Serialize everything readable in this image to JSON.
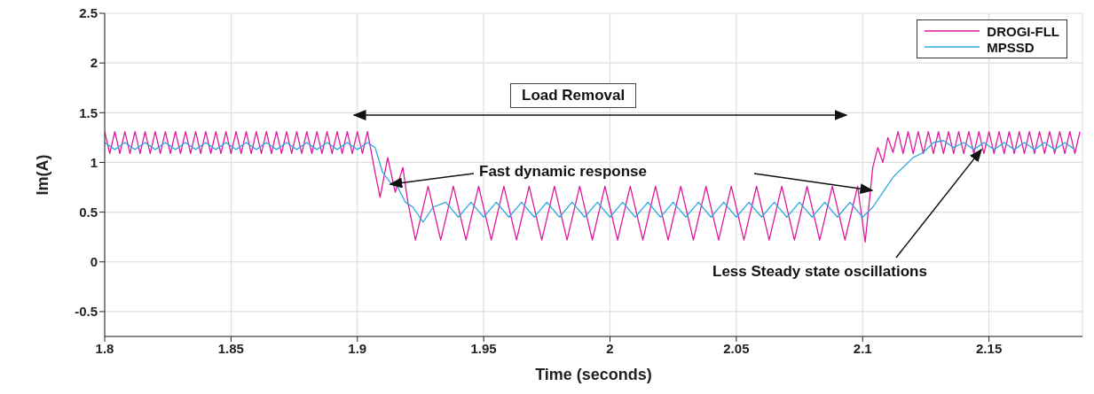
{
  "chart_data": {
    "type": "line",
    "xlabel": "Time (seconds)",
    "ylabel": "Im(A)",
    "xlim": [
      1.8,
      2.187
    ],
    "xticks": [
      1.8,
      1.85,
      1.9,
      1.95,
      2,
      2.05,
      2.1,
      2.15
    ],
    "ylim": [
      -0.75,
      2.5
    ],
    "yticks": [
      -0.5,
      0,
      0.5,
      1,
      1.5,
      2,
      2.5
    ],
    "grid": true,
    "legend": "top right",
    "marker": "none",
    "line_style": "solid",
    "annotations": [
      "Load Removal",
      {
        "text": "Fast dynamic response",
        "x": 1.913,
        "y": 0.78
      },
      {
        "text": "Less Steady state oscillations",
        "x": 2.147,
        "y": 1.13
      }
    ],
    "series": [
      {
        "name": "DROGI-FLL",
        "color": "#e0189c",
        "x": [
          1.8,
          1.802,
          1.804,
          1.806,
          1.808,
          1.81,
          1.812,
          1.814,
          1.816,
          1.818,
          1.82,
          1.822,
          1.824,
          1.826,
          1.828,
          1.83,
          1.832,
          1.834,
          1.836,
          1.838,
          1.84,
          1.842,
          1.844,
          1.846,
          1.848,
          1.85,
          1.852,
          1.854,
          1.856,
          1.858,
          1.86,
          1.862,
          1.864,
          1.866,
          1.868,
          1.87,
          1.872,
          1.874,
          1.876,
          1.878,
          1.88,
          1.882,
          1.884,
          1.886,
          1.888,
          1.89,
          1.892,
          1.894,
          1.896,
          1.898,
          1.9,
          1.902,
          1.904,
          1.907,
          1.909,
          1.912,
          1.915,
          1.918,
          1.92,
          1.923,
          1.928,
          1.933,
          1.938,
          1.943,
          1.948,
          1.953,
          1.958,
          1.963,
          1.968,
          1.973,
          1.978,
          1.983,
          1.988,
          1.993,
          1.998,
          2.003,
          2.008,
          2.013,
          2.018,
          2.023,
          2.028,
          2.033,
          2.038,
          2.043,
          2.048,
          2.053,
          2.058,
          2.063,
          2.068,
          2.073,
          2.078,
          2.083,
          2.088,
          2.093,
          2.098,
          2.101,
          2.104,
          2.106,
          2.108,
          2.11,
          2.112,
          2.114,
          2.116,
          2.118,
          2.12,
          2.122,
          2.124,
          2.126,
          2.128,
          2.13,
          2.132,
          2.134,
          2.136,
          2.138,
          2.14,
          2.142,
          2.144,
          2.146,
          2.148,
          2.15,
          2.152,
          2.154,
          2.156,
          2.158,
          2.16,
          2.162,
          2.164,
          2.166,
          2.168,
          2.17,
          2.172,
          2.174,
          2.176,
          2.178,
          2.18,
          2.182,
          2.184,
          2.186
        ],
        "values": [
          1.31,
          1.09,
          1.31,
          1.09,
          1.31,
          1.09,
          1.31,
          1.09,
          1.31,
          1.09,
          1.31,
          1.09,
          1.31,
          1.09,
          1.31,
          1.09,
          1.31,
          1.09,
          1.31,
          1.09,
          1.31,
          1.09,
          1.31,
          1.09,
          1.31,
          1.09,
          1.31,
          1.09,
          1.31,
          1.09,
          1.31,
          1.09,
          1.31,
          1.09,
          1.31,
          1.09,
          1.31,
          1.09,
          1.31,
          1.09,
          1.31,
          1.09,
          1.31,
          1.09,
          1.31,
          1.09,
          1.31,
          1.09,
          1.31,
          1.09,
          1.31,
          1.09,
          1.31,
          0.9,
          0.65,
          1.05,
          0.7,
          0.95,
          0.6,
          0.22,
          0.76,
          0.22,
          0.76,
          0.22,
          0.76,
          0.22,
          0.76,
          0.22,
          0.76,
          0.22,
          0.76,
          0.22,
          0.76,
          0.22,
          0.76,
          0.22,
          0.76,
          0.22,
          0.76,
          0.22,
          0.76,
          0.22,
          0.76,
          0.22,
          0.76,
          0.22,
          0.76,
          0.22,
          0.76,
          0.22,
          0.76,
          0.22,
          0.76,
          0.22,
          0.76,
          0.2,
          0.95,
          1.15,
          1.0,
          1.25,
          1.1,
          1.31,
          1.09,
          1.31,
          1.09,
          1.31,
          1.09,
          1.31,
          1.09,
          1.31,
          1.09,
          1.31,
          1.09,
          1.31,
          1.09,
          1.31,
          1.09,
          1.31,
          1.09,
          1.31,
          1.09,
          1.31,
          1.09,
          1.31,
          1.09,
          1.31,
          1.09,
          1.31,
          1.09,
          1.31,
          1.09,
          1.31,
          1.09,
          1.31,
          1.09,
          1.31,
          1.09,
          1.31
        ]
      },
      {
        "name": "MPSSD",
        "color": "#2ea8e0",
        "x": [
          1.8,
          1.804,
          1.808,
          1.812,
          1.816,
          1.82,
          1.824,
          1.828,
          1.832,
          1.836,
          1.84,
          1.844,
          1.848,
          1.852,
          1.856,
          1.86,
          1.864,
          1.868,
          1.872,
          1.876,
          1.88,
          1.884,
          1.888,
          1.892,
          1.896,
          1.9,
          1.904,
          1.907,
          1.91,
          1.913,
          1.916,
          1.919,
          1.922,
          1.926,
          1.93,
          1.935,
          1.94,
          1.945,
          1.95,
          1.955,
          1.96,
          1.965,
          1.97,
          1.975,
          1.98,
          1.985,
          1.99,
          1.995,
          2,
          2.005,
          2.01,
          2.015,
          2.02,
          2.025,
          2.03,
          2.035,
          2.04,
          2.045,
          2.05,
          2.055,
          2.06,
          2.065,
          2.07,
          2.075,
          2.08,
          2.085,
          2.09,
          2.095,
          2.1,
          2.104,
          2.108,
          2.112,
          2.116,
          2.12,
          2.124,
          2.128,
          2.132,
          2.136,
          2.14,
          2.144,
          2.148,
          2.152,
          2.156,
          2.16,
          2.164,
          2.168,
          2.172,
          2.176,
          2.18,
          2.184
        ],
        "values": [
          1.2,
          1.13,
          1.2,
          1.13,
          1.2,
          1.13,
          1.2,
          1.13,
          1.2,
          1.13,
          1.2,
          1.13,
          1.2,
          1.13,
          1.2,
          1.13,
          1.2,
          1.13,
          1.2,
          1.13,
          1.2,
          1.13,
          1.2,
          1.13,
          1.2,
          1.13,
          1.2,
          1.15,
          0.9,
          0.8,
          0.75,
          0.6,
          0.55,
          0.4,
          0.55,
          0.6,
          0.45,
          0.6,
          0.45,
          0.6,
          0.45,
          0.6,
          0.45,
          0.6,
          0.45,
          0.6,
          0.45,
          0.6,
          0.45,
          0.6,
          0.45,
          0.6,
          0.45,
          0.6,
          0.45,
          0.6,
          0.45,
          0.6,
          0.45,
          0.6,
          0.45,
          0.6,
          0.45,
          0.6,
          0.45,
          0.6,
          0.45,
          0.6,
          0.45,
          0.55,
          0.7,
          0.85,
          0.95,
          1.05,
          1.1,
          1.2,
          1.22,
          1.15,
          1.2,
          1.13,
          1.2,
          1.13,
          1.2,
          1.13,
          1.2,
          1.13,
          1.2,
          1.13,
          1.2,
          1.13
        ]
      }
    ]
  }
}
